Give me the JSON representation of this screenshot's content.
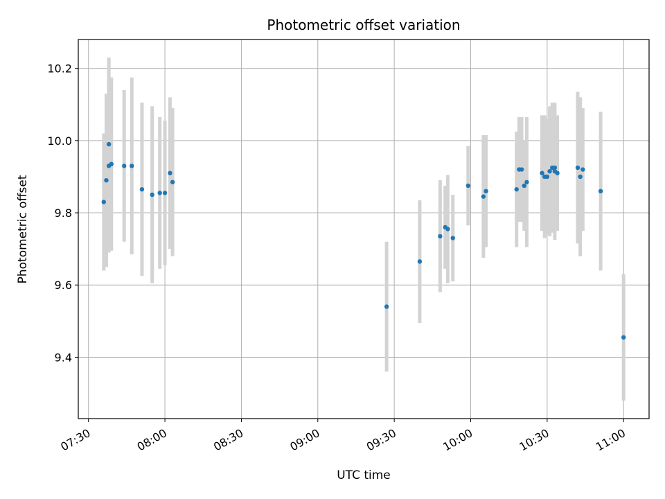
{
  "chart_data": {
    "type": "scatter",
    "title": "Photometric offset variation",
    "xlabel": "UTC time",
    "ylabel": "Photometric offset",
    "x_ticks": [
      "07:30",
      "08:00",
      "08:30",
      "09:00",
      "09:30",
      "10:00",
      "10:30",
      "11:00"
    ],
    "y_ticks": [
      "9.4",
      "9.6",
      "9.8",
      "10.0",
      "10.2"
    ],
    "xlim": [
      "07:26",
      "11:10"
    ],
    "ylim": [
      9.23,
      10.28
    ],
    "grid": true,
    "legend": "none",
    "point_color": "#1f77b4",
    "errorbar_color": "#d3d3d3",
    "series": [
      {
        "points": [
          {
            "x": "07:36",
            "y": 9.83,
            "err": 0.19
          },
          {
            "x": "07:37",
            "y": 9.89,
            "err": 0.24
          },
          {
            "x": "07:38",
            "y": 9.99,
            "err": 0.24
          },
          {
            "x": "07:38",
            "y": 9.93,
            "err": 0.24
          },
          {
            "x": "07:39",
            "y": 9.935,
            "err": 0.24
          },
          {
            "x": "07:44",
            "y": 9.93,
            "err": 0.21
          },
          {
            "x": "07:47",
            "y": 9.93,
            "err": 0.245
          },
          {
            "x": "07:51",
            "y": 9.865,
            "err": 0.24
          },
          {
            "x": "07:55",
            "y": 9.85,
            "err": 0.245
          },
          {
            "x": "07:58",
            "y": 9.855,
            "err": 0.21
          },
          {
            "x": "08:00",
            "y": 9.855,
            "err": 0.2
          },
          {
            "x": "08:02",
            "y": 9.91,
            "err": 0.21
          },
          {
            "x": "08:03",
            "y": 9.885,
            "err": 0.205
          },
          {
            "x": "09:27",
            "y": 9.54,
            "err": 0.18
          },
          {
            "x": "09:40",
            "y": 9.665,
            "err": 0.17
          },
          {
            "x": "09:48",
            "y": 9.735,
            "err": 0.155
          },
          {
            "x": "09:50",
            "y": 9.76,
            "err": 0.115
          },
          {
            "x": "09:51",
            "y": 9.755,
            "err": 0.15
          },
          {
            "x": "09:53",
            "y": 9.73,
            "err": 0.12
          },
          {
            "x": "09:59",
            "y": 9.875,
            "err": 0.11
          },
          {
            "x": "10:05",
            "y": 9.845,
            "err": 0.17
          },
          {
            "x": "10:06",
            "y": 9.86,
            "err": 0.155
          },
          {
            "x": "10:18",
            "y": 9.865,
            "err": 0.16
          },
          {
            "x": "10:19",
            "y": 9.92,
            "err": 0.145
          },
          {
            "x": "10:20",
            "y": 9.92,
            "err": 0.145
          },
          {
            "x": "10:21",
            "y": 9.875,
            "err": 0.125
          },
          {
            "x": "10:22",
            "y": 9.885,
            "err": 0.18
          },
          {
            "x": "10:28",
            "y": 9.91,
            "err": 0.16
          },
          {
            "x": "10:29",
            "y": 9.9,
            "err": 0.17
          },
          {
            "x": "10:30",
            "y": 9.9,
            "err": 0.16
          },
          {
            "x": "10:31",
            "y": 9.915,
            "err": 0.18
          },
          {
            "x": "10:32",
            "y": 9.925,
            "err": 0.18
          },
          {
            "x": "10:33",
            "y": 9.915,
            "err": 0.19
          },
          {
            "x": "10:33",
            "y": 9.925,
            "err": 0.17
          },
          {
            "x": "10:34",
            "y": 9.91,
            "err": 0.16
          },
          {
            "x": "10:42",
            "y": 9.925,
            "err": 0.21
          },
          {
            "x": "10:43",
            "y": 9.9,
            "err": 0.22
          },
          {
            "x": "10:44",
            "y": 9.92,
            "err": 0.17
          },
          {
            "x": "10:51",
            "y": 9.86,
            "err": 0.22
          },
          {
            "x": "11:00",
            "y": 9.455,
            "err": 0.175
          }
        ]
      }
    ]
  }
}
